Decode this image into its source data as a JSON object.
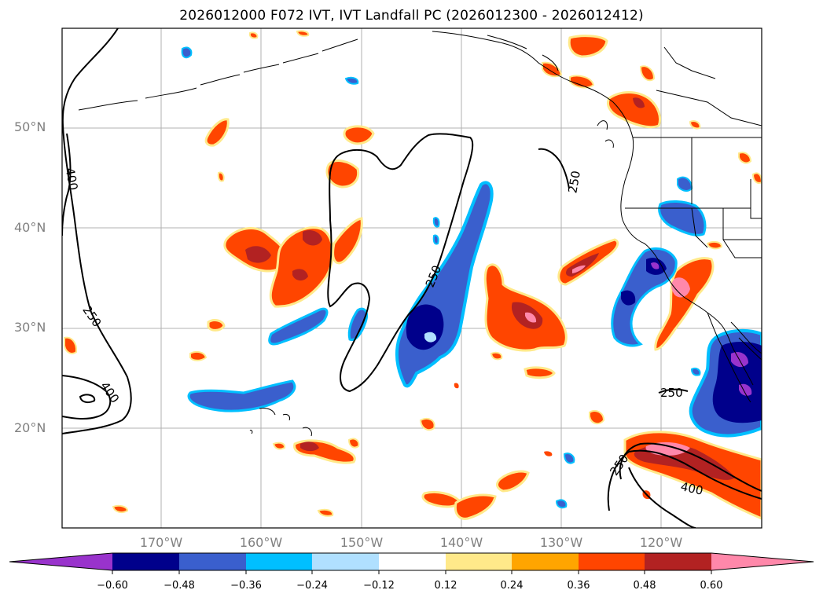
{
  "title": "2026012000 F072 IVT, IVT Landfall PC (2026012300 - 2026012412)",
  "map": {
    "lat_labels": [
      "50°N",
      "40°N",
      "30°N",
      "20°N"
    ],
    "lon_labels": [
      "170°W",
      "160°W",
      "150°W",
      "140°W",
      "130°W",
      "120°W"
    ],
    "contour_labels": [
      "400",
      "250",
      "400",
      "250",
      "250",
      "250",
      "250",
      "400"
    ],
    "grid": true
  },
  "colorbar": {
    "ticks": [
      "−0.60",
      "−0.48",
      "−0.36",
      "−0.24",
      "−0.12",
      "0.12",
      "0.24",
      "0.36",
      "0.48",
      "0.60"
    ],
    "colors": [
      "#9933cc",
      "#00008b",
      "#3a5fcd",
      "#00bfff",
      "#b0e0ff",
      "#ffffff",
      "#ffe98a",
      "#ffa500",
      "#ff4500",
      "#b22222",
      "#ff88aa"
    ],
    "extend": "both"
  }
}
